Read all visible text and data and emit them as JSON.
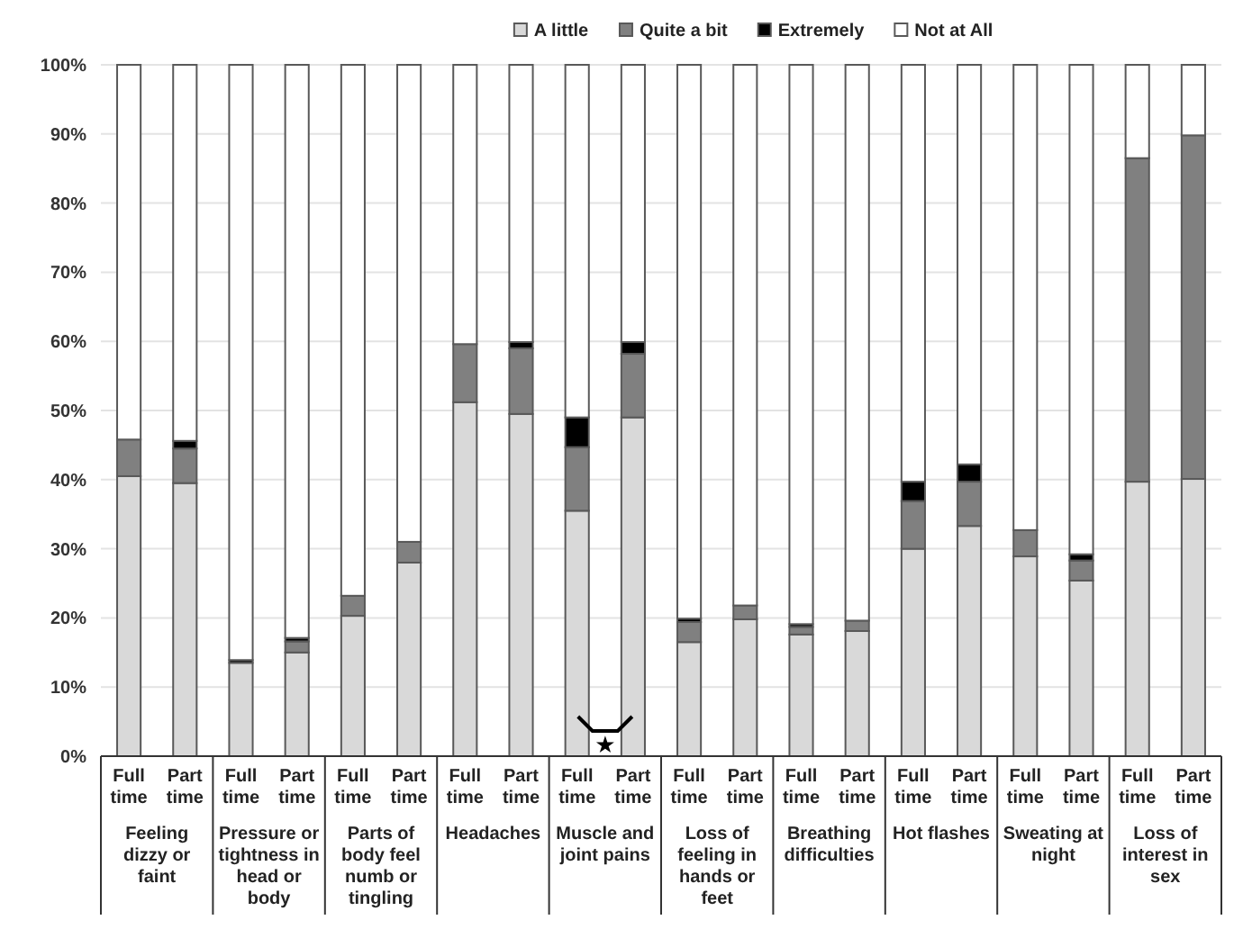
{
  "chart_data": {
    "type": "bar",
    "stacked": true,
    "categories": [
      "Full time",
      "Part time",
      "Full time",
      "Part time",
      "Full time",
      "Part time",
      "Full time",
      "Part time",
      "Full time",
      "Part time",
      "Full time",
      "Part time",
      "Full time",
      "Part time",
      "Full time",
      "Part time",
      "Full time",
      "Part time",
      "Full time",
      "Part time"
    ],
    "series": [
      {
        "name": "A little",
        "color": "#d9d9d9",
        "values": [
          40.5,
          39.5,
          13.5,
          15,
          20.3,
          28,
          51.2,
          49.5,
          35.5,
          49,
          16.5,
          19.8,
          17.6,
          18.1,
          30,
          33.3,
          28.9,
          25.4,
          39.7,
          40.1
        ]
      },
      {
        "name": "Quite a bit",
        "color": "#808080",
        "values": [
          5.3,
          5,
          0,
          1.6,
          2.9,
          3,
          8.4,
          9.5,
          9.2,
          9.2,
          2.9,
          2,
          1.1,
          1.5,
          6.9,
          6.4,
          3.8,
          2.9,
          46.8,
          49.7
        ]
      },
      {
        "name": "Extremely",
        "color": "#000000",
        "values": [
          0,
          1.1,
          0.4,
          0.5,
          0,
          0,
          0,
          0.9,
          4.3,
          1.7,
          0.5,
          0,
          0.4,
          0,
          2.8,
          2.5,
          0,
          0.9,
          0,
          0
        ]
      },
      {
        "name": "Not at All",
        "color": "#ffffff",
        "values": [
          54.2,
          54.4,
          86.1,
          82.9,
          76.8,
          69,
          40.4,
          40.1,
          51,
          40.1,
          80.1,
          78.2,
          80.9,
          80.4,
          60.3,
          57.8,
          67.3,
          70.8,
          13.5,
          10.2
        ]
      }
    ],
    "ylim": [
      0,
      100
    ],
    "yticks": [
      {
        "value": 0,
        "label": "0%"
      },
      {
        "value": 10,
        "label": "10%"
      },
      {
        "value": 20,
        "label": "20%"
      },
      {
        "value": 30,
        "label": "30%"
      },
      {
        "value": 40,
        "label": "40%"
      },
      {
        "value": 50,
        "label": "50%"
      },
      {
        "value": 60,
        "label": "60%"
      },
      {
        "value": 70,
        "label": "70%"
      },
      {
        "value": 80,
        "label": "80%"
      },
      {
        "value": 90,
        "label": "90%"
      },
      {
        "value": 100,
        "label": "100%"
      }
    ],
    "grid": "y",
    "legend": "top",
    "annotations": [
      "Feeling dizzy or faint",
      "Pressure or tightness in head or body",
      "Parts of body feel numb or tingling",
      "Headaches",
      "Muscle and joint pains",
      "Loss of feeling in hands or feet",
      "Breathing difficulties",
      "Hot flashes",
      "Sweating at night",
      "Loss of interest in sex",
      "★"
    ]
  }
}
